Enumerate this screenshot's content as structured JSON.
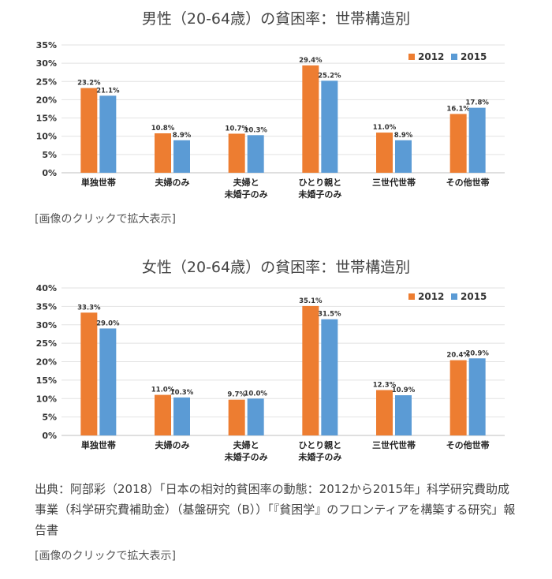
{
  "legend": {
    "series": [
      "2012",
      "2015"
    ]
  },
  "colors": {
    "2012": "#ed7d31",
    "2015": "#5b9bd5"
  },
  "chart_data": [
    {
      "type": "bar",
      "title": "男性（20-64歳）の貧困率：世帯構造別",
      "categories": [
        [
          "単独世帯"
        ],
        [
          "夫婦のみ"
        ],
        [
          "夫婦と",
          "未婚子のみ"
        ],
        [
          "ひとり親と",
          "未婚子のみ"
        ],
        [
          "三世代世帯"
        ],
        [
          "その他世帯"
        ]
      ],
      "series": [
        {
          "name": "2012",
          "values": [
            23.2,
            10.8,
            10.7,
            29.4,
            11.0,
            16.1
          ]
        },
        {
          "name": "2015",
          "values": [
            21.1,
            8.9,
            10.3,
            25.2,
            8.9,
            17.8
          ]
        }
      ],
      "ylim": [
        0,
        35
      ],
      "yticks": [
        "0%",
        "5%",
        "10%",
        "15%",
        "20%",
        "25%",
        "30%",
        "35%"
      ],
      "legend_position": "top-right"
    },
    {
      "type": "bar",
      "title": "女性（20-64歳）の貧困率：世帯構造別",
      "categories": [
        [
          "単独世帯"
        ],
        [
          "夫婦のみ"
        ],
        [
          "夫婦と",
          "未婚子のみ"
        ],
        [
          "ひとり親と",
          "未婚子のみ"
        ],
        [
          "三世代世帯"
        ],
        [
          "その他世帯"
        ]
      ],
      "series": [
        {
          "name": "2012",
          "values": [
            33.3,
            11.0,
            9.7,
            35.1,
            12.3,
            20.4
          ]
        },
        {
          "name": "2015",
          "values": [
            29.0,
            10.3,
            10.0,
            31.5,
            10.9,
            20.9
          ]
        }
      ],
      "ylim": [
        0,
        40
      ],
      "yticks": [
        "0%",
        "5%",
        "10%",
        "15%",
        "20%",
        "25%",
        "30%",
        "35%",
        "40%"
      ],
      "legend_position": "top-right"
    }
  ],
  "link_text": "[画像のクリックで拡大表示]",
  "source_text": "出典：阿部彩（2018）「日本の相対的貧困率の動態：2012から2015年」科学研究費助成事業（科学研究費補助金）（基盤研究（B））「『貧困学』のフロンティアを構築する研究」報告書"
}
